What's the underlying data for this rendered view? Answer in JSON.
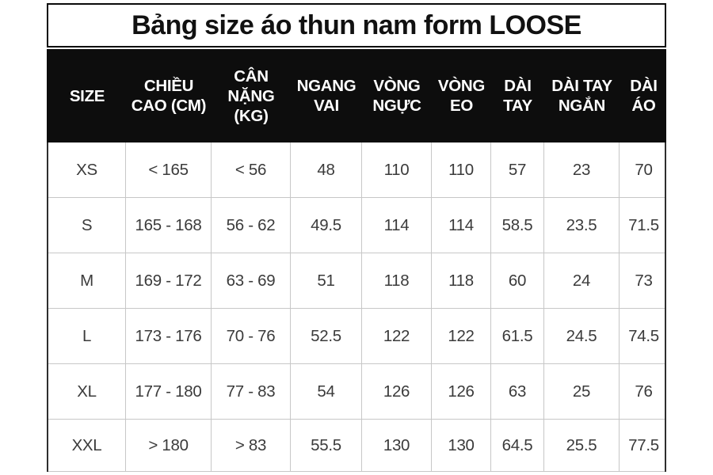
{
  "page_title": "Bảng size áo thun nam form LOOSE",
  "colors": {
    "header_bg": "#0d0d0d",
    "header_text": "#ffffff",
    "body_text": "#3b3b3b",
    "grid_line": "#c7c7c7",
    "outer_border": "#2e2e2e",
    "title_border": "#0a0a0a"
  },
  "chart_data": {
    "type": "table",
    "title": "Bảng size áo thun nam form LOOSE",
    "columns": [
      "SIZE",
      "CHIỀU CAO (CM)",
      "CÂN NẶNG (KG)",
      "NGANG VAI",
      "VÒNG NGỰC",
      "VÒNG EO",
      "DÀI TAY",
      "DÀI TAY NGẮN",
      "DÀI ÁO"
    ],
    "rows": [
      [
        "XS",
        "< 165",
        "< 56",
        "48",
        "110",
        "110",
        "57",
        "23",
        "70"
      ],
      [
        "S",
        "165 - 168",
        "56 - 62",
        "49.5",
        "114",
        "114",
        "58.5",
        "23.5",
        "71.5"
      ],
      [
        "M",
        "169 - 172",
        "63 - 69",
        "51",
        "118",
        "118",
        "60",
        "24",
        "73"
      ],
      [
        "L",
        "173 - 176",
        "70 - 76",
        "52.5",
        "122",
        "122",
        "61.5",
        "24.5",
        "74.5"
      ],
      [
        "XL",
        "177 - 180",
        "77 - 83",
        "54",
        "126",
        "126",
        "63",
        "25",
        "76"
      ],
      [
        "XXL",
        "> 180",
        "> 83",
        "55.5",
        "130",
        "130",
        "64.5",
        "25.5",
        "77.5"
      ]
    ]
  },
  "header_lines": [
    [
      "SIZE"
    ],
    [
      "CHIỀU",
      "CAO (CM)"
    ],
    [
      "CÂN",
      "NẶNG",
      "(KG)"
    ],
    [
      "NGANG",
      "VAI"
    ],
    [
      "VÒNG",
      "NGỰC"
    ],
    [
      "VÒNG",
      "EO"
    ],
    [
      "DÀI",
      "TAY"
    ],
    [
      "DÀI TAY",
      "NGẮN"
    ],
    [
      "DÀI",
      "ÁO"
    ]
  ]
}
